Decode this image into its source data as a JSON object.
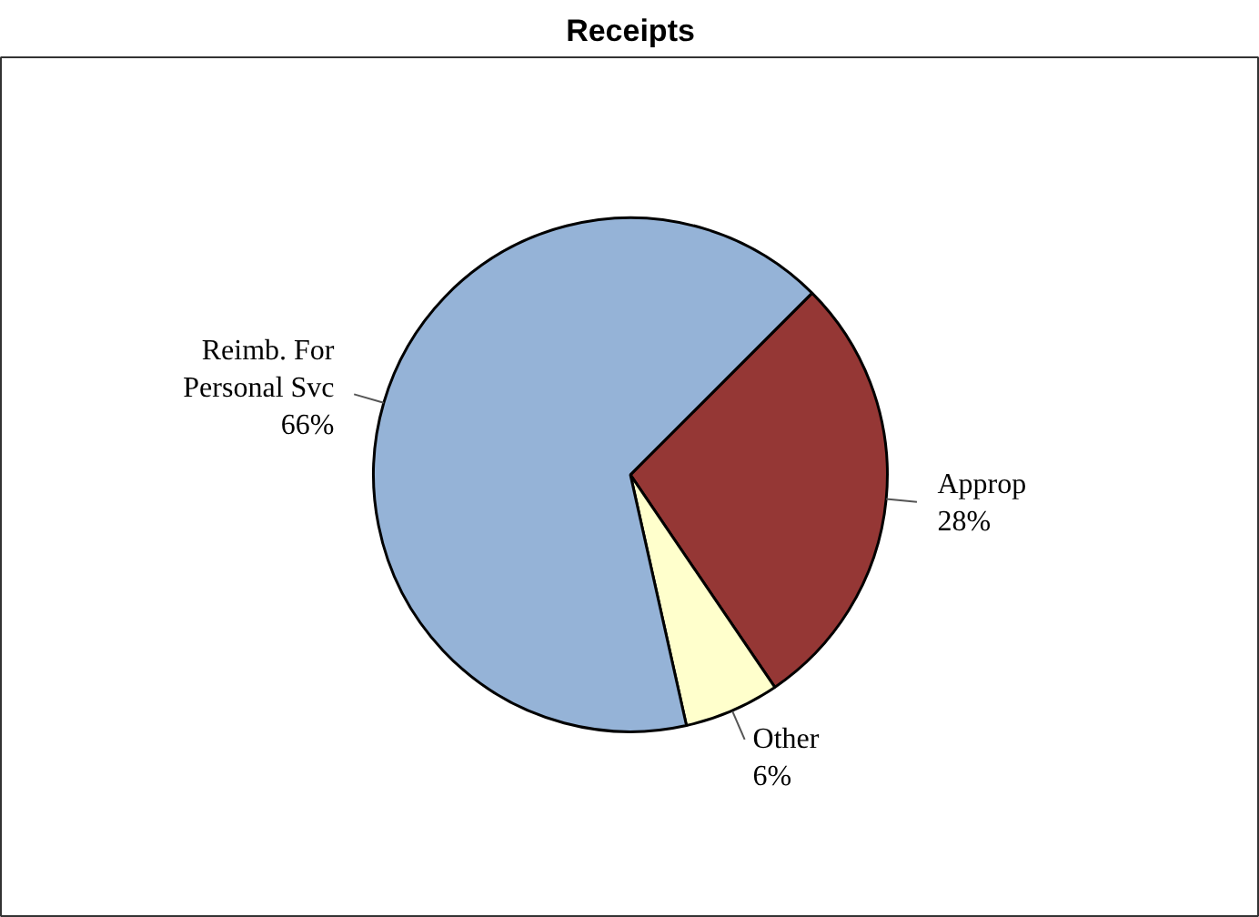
{
  "chart_data": {
    "type": "pie",
    "title": "Receipts",
    "categories": [
      "Approp",
      "Other",
      "Reimb. For Personal Svc"
    ],
    "values": [
      28,
      6,
      66
    ],
    "colors": [
      "#953735",
      "#ffffcc",
      "#95b3d7"
    ],
    "value_labels": [
      "28%",
      "6%",
      "66%"
    ]
  }
}
